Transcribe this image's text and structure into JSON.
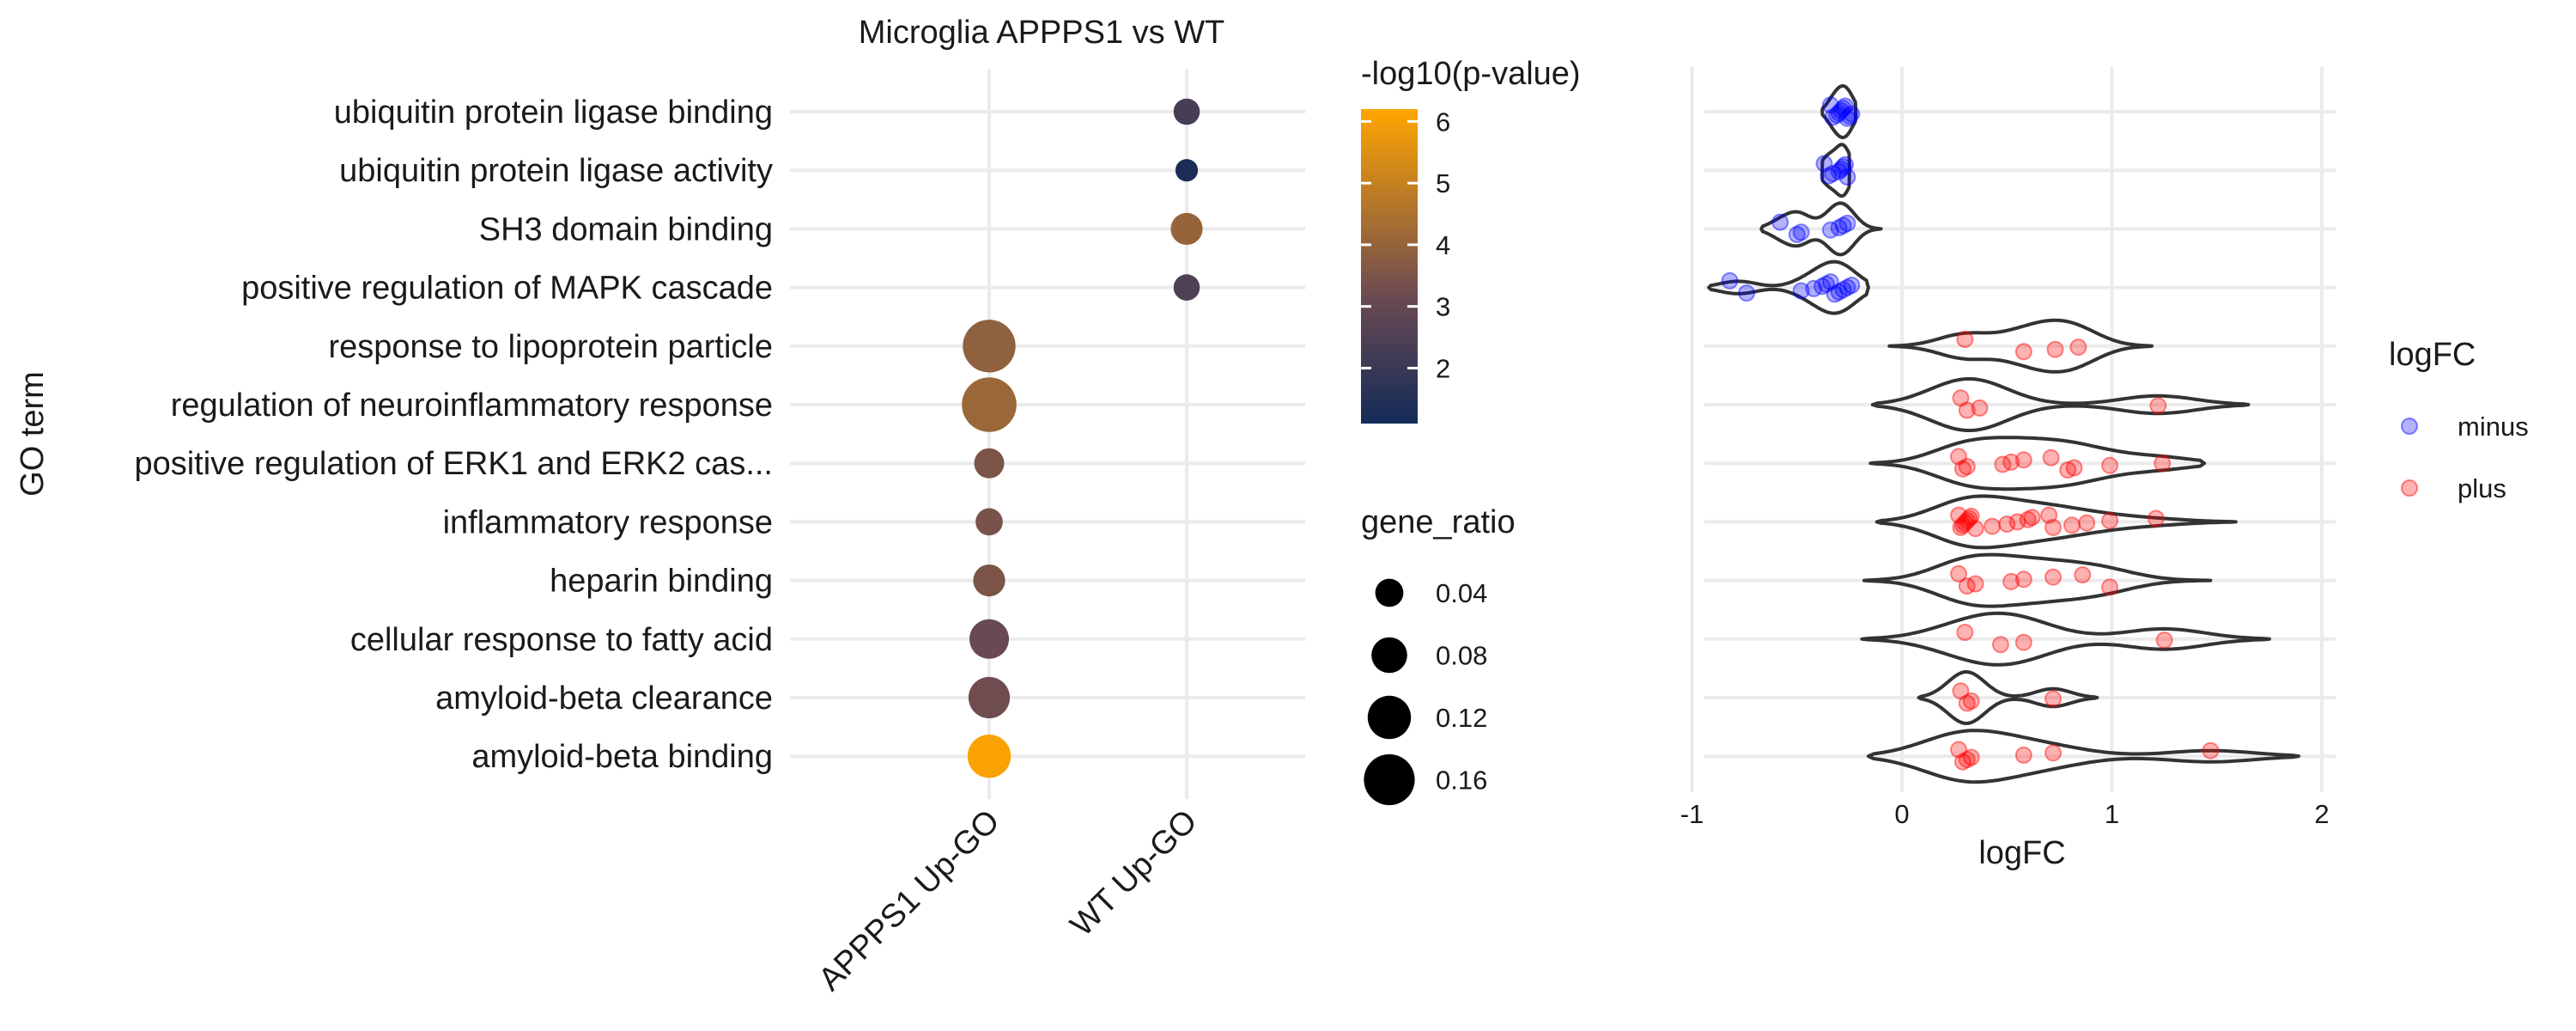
{
  "colors": {
    "grid": "#ebebeb",
    "text": "#1a1a1a",
    "minus": "#0000ff",
    "plus": "#ff0000",
    "violin": "#333333",
    "gradient_low": "#132b58",
    "gradient_mid": "#6b4a52",
    "gradient_high": "#ffa500"
  },
  "chart_data": [
    {
      "type": "scatter",
      "title": "Microglia APPPS1 vs WT",
      "xlabel": "",
      "ylabel": "GO term",
      "categories_x": [
        "APPPS1 Up-GO",
        "WT Up-GO"
      ],
      "categories_y": [
        "ubiquitin protein ligase binding",
        "ubiquitin protein ligase activity",
        "SH3 domain binding",
        "positive regulation of MAPK cascade",
        "response to lipoprotein particle",
        "regulation of neuroinflammatory response",
        "positive regulation of ERK1 and ERK2 cas...",
        "inflammatory response",
        "heparin binding",
        "cellular response to fatty acid",
        "amyloid-beta clearance",
        "amyloid-beta binding"
      ],
      "points": [
        {
          "term": "ubiquitin protein ligase binding",
          "group": "WT Up-GO",
          "neglog10p": 2.3,
          "gene_ratio": 0.03
        },
        {
          "term": "ubiquitin protein ligase activity",
          "group": "WT Up-GO",
          "neglog10p": 1.3,
          "gene_ratio": 0.01
        },
        {
          "term": "SH3 domain binding",
          "group": "WT Up-GO",
          "neglog10p": 4.0,
          "gene_ratio": 0.06
        },
        {
          "term": "positive regulation of MAPK cascade",
          "group": "WT Up-GO",
          "neglog10p": 2.5,
          "gene_ratio": 0.03
        },
        {
          "term": "response to lipoprotein particle",
          "group": "APPPS1 Up-GO",
          "neglog10p": 3.9,
          "gene_ratio": 0.17
        },
        {
          "term": "regulation of neuroinflammatory response",
          "group": "APPPS1 Up-GO",
          "neglog10p": 4.1,
          "gene_ratio": 0.18
        },
        {
          "term": "positive regulation of ERK1 and ERK2 cas...",
          "group": "APPPS1 Up-GO",
          "neglog10p": 3.5,
          "gene_ratio": 0.05
        },
        {
          "term": "inflammatory response",
          "group": "APPPS1 Up-GO",
          "neglog10p": 3.4,
          "gene_ratio": 0.035
        },
        {
          "term": "heparin binding",
          "group": "APPPS1 Up-GO",
          "neglog10p": 3.5,
          "gene_ratio": 0.06
        },
        {
          "term": "cellular response to fatty acid",
          "group": "APPPS1 Up-GO",
          "neglog10p": 3.1,
          "gene_ratio": 0.1
        },
        {
          "term": "amyloid-beta clearance",
          "group": "APPPS1 Up-GO",
          "neglog10p": 3.2,
          "gene_ratio": 0.11
        },
        {
          "term": "amyloid-beta binding",
          "group": "APPPS1 Up-GO",
          "neglog10p": 6.1,
          "gene_ratio": 0.12
        }
      ],
      "color_legend": {
        "title": "-log10(p-value)",
        "ticks": [
          2,
          3,
          4,
          5,
          6
        ],
        "range": [
          1.1,
          6.2
        ]
      },
      "size_legend": {
        "title": "gene_ratio",
        "ticks": [
          0.04,
          0.08,
          0.12,
          0.16
        ]
      }
    },
    {
      "type": "scatter",
      "xlabel": "logFC",
      "ylabel": "",
      "xlim": [
        -1,
        2
      ],
      "xticks": [
        -1,
        0,
        1,
        2
      ],
      "legend": {
        "title": "logFC",
        "entries": [
          "minus",
          "plus"
        ],
        "placement": "right"
      },
      "rows": [
        {
          "term": "ubiquitin protein ligase binding",
          "sign": "minus",
          "violin": [
            -0.38,
            -0.22
          ],
          "values": [
            -0.34,
            -0.33,
            -0.31,
            -0.3,
            -0.29,
            -0.28,
            -0.27,
            -0.26,
            -0.25,
            -0.24
          ]
        },
        {
          "term": "ubiquitin protein ligase activity",
          "sign": "minus",
          "violin": [
            -0.38,
            -0.25
          ],
          "values": [
            -0.37,
            -0.35,
            -0.33,
            -0.3,
            -0.29,
            -0.28,
            -0.27,
            -0.26
          ]
        },
        {
          "term": "SH3 domain binding",
          "sign": "minus",
          "violin": [
            -0.67,
            -0.1
          ],
          "values": [
            -0.58,
            -0.5,
            -0.48,
            -0.34,
            -0.3,
            -0.28,
            -0.26
          ]
        },
        {
          "term": "positive regulation of MAPK cascade",
          "sign": "minus",
          "violin": [
            -0.92,
            -0.16
          ],
          "values": [
            -0.82,
            -0.74,
            -0.48,
            -0.42,
            -0.38,
            -0.36,
            -0.34,
            -0.32,
            -0.3,
            -0.28,
            -0.26,
            -0.24
          ]
        },
        {
          "term": "response to lipoprotein particle",
          "sign": "plus",
          "violin": [
            -0.06,
            1.19
          ],
          "values": [
            0.3,
            0.58,
            0.73,
            0.84
          ]
        },
        {
          "term": "regulation of neuroinflammatory response",
          "sign": "plus",
          "violin": [
            -0.14,
            1.65
          ],
          "values": [
            0.28,
            0.31,
            0.37,
            1.22
          ]
        },
        {
          "term": "positive regulation of ERK1 and ERK2 cas...",
          "sign": "plus",
          "violin": [
            -0.15,
            1.44
          ],
          "values": [
            0.27,
            0.29,
            0.31,
            0.48,
            0.52,
            0.58,
            0.71,
            0.79,
            0.82,
            0.99,
            1.24
          ]
        },
        {
          "term": "inflammatory response",
          "sign": "plus",
          "violin": [
            -0.12,
            1.59
          ],
          "values": [
            0.27,
            0.28,
            0.29,
            0.3,
            0.31,
            0.32,
            0.33,
            0.35,
            0.43,
            0.5,
            0.55,
            0.6,
            0.62,
            0.7,
            0.72,
            0.81,
            0.88,
            0.99,
            1.21
          ]
        },
        {
          "term": "heparin binding",
          "sign": "plus",
          "violin": [
            -0.18,
            1.47
          ],
          "values": [
            0.27,
            0.31,
            0.35,
            0.52,
            0.58,
            0.72,
            0.86,
            0.99
          ]
        },
        {
          "term": "cellular response to fatty acid",
          "sign": "plus",
          "violin": [
            -0.19,
            1.75
          ],
          "values": [
            0.3,
            0.47,
            0.58,
            1.25
          ]
        },
        {
          "term": "amyloid-beta clearance",
          "sign": "plus",
          "violin": [
            0.08,
            0.93
          ],
          "values": [
            0.28,
            0.31,
            0.33,
            0.72
          ]
        },
        {
          "term": "amyloid-beta binding",
          "sign": "plus",
          "violin": [
            -0.16,
            1.89
          ],
          "values": [
            0.27,
            0.29,
            0.31,
            0.33,
            0.58,
            0.72,
            1.47
          ]
        }
      ]
    }
  ]
}
